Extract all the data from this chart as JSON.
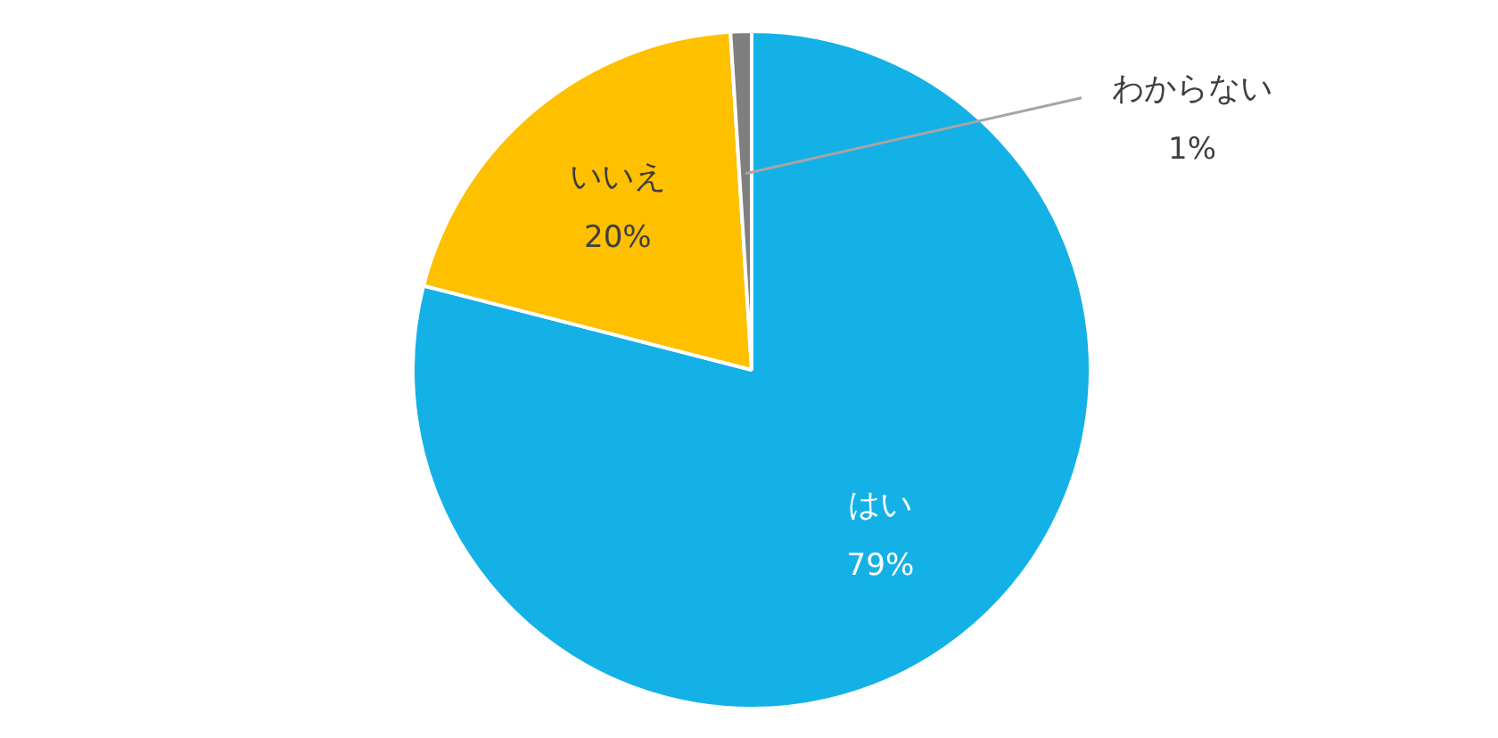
{
  "chart_data": {
    "type": "pie",
    "categories": [
      "はい",
      "いいえ",
      "わからない"
    ],
    "values": [
      79,
      20,
      1
    ],
    "colors": [
      "#14b1e7",
      "#ffc000",
      "#7f7f7f"
    ],
    "value_labels": [
      "79%",
      "20%",
      "1%"
    ]
  }
}
